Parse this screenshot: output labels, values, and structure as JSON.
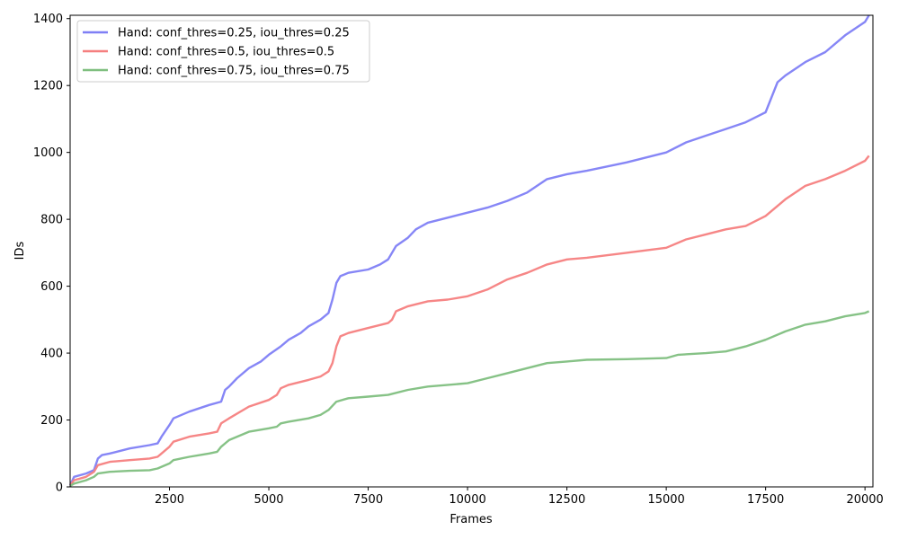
{
  "chart_data": {
    "type": "line",
    "title": "",
    "xlabel": "Frames",
    "ylabel": "IDs",
    "xlim": [
      0,
      20200
    ],
    "ylim": [
      0,
      1410
    ],
    "xticks": [
      2500,
      5000,
      7500,
      10000,
      12500,
      15000,
      17500,
      20000
    ],
    "xtick_labels": [
      "2500",
      "5000",
      "7500",
      "10000",
      "12500",
      "15000",
      "17500",
      "20000"
    ],
    "yticks": [
      0,
      200,
      400,
      600,
      800,
      1000,
      1200,
      1400
    ],
    "ytick_labels": [
      "0",
      "200",
      "400",
      "600",
      "800",
      "1000",
      "1200",
      "1400"
    ],
    "grid": false,
    "legend_position": "top-left",
    "series": [
      {
        "name": "Hand: conf_thres=0.25, iou_thres=0.25",
        "color": "#7f7ff5",
        "x": [
          0,
          100,
          400,
          600,
          700,
          800,
          1000,
          1500,
          2000,
          2200,
          2300,
          2500,
          2600,
          3000,
          3500,
          3800,
          3900,
          4000,
          4200,
          4500,
          4800,
          5000,
          5300,
          5500,
          5800,
          6000,
          6300,
          6500,
          6600,
          6700,
          6800,
          7000,
          7500,
          7800,
          8000,
          8200,
          8500,
          8700,
          9000,
          9500,
          10000,
          10500,
          11000,
          11500,
          12000,
          12500,
          13000,
          14000,
          15000,
          15500,
          16000,
          16500,
          17000,
          17500,
          17800,
          18000,
          18500,
          19000,
          19500,
          20000,
          20100
        ],
        "values": [
          5,
          30,
          40,
          50,
          85,
          95,
          100,
          115,
          125,
          130,
          150,
          185,
          205,
          225,
          245,
          255,
          290,
          300,
          325,
          355,
          375,
          395,
          420,
          440,
          460,
          480,
          500,
          520,
          560,
          610,
          630,
          640,
          650,
          665,
          680,
          720,
          745,
          770,
          790,
          805,
          820,
          835,
          855,
          880,
          920,
          935,
          945,
          970,
          1000,
          1030,
          1050,
          1070,
          1090,
          1120,
          1210,
          1230,
          1270,
          1300,
          1350,
          1390,
          1410
        ]
      },
      {
        "name": "Hand: conf_thres=0.5, iou_thres=0.5",
        "color": "#f57f7f",
        "x": [
          0,
          100,
          400,
          600,
          700,
          1000,
          1500,
          2000,
          2200,
          2300,
          2500,
          2600,
          3000,
          3500,
          3700,
          3800,
          4000,
          4500,
          5000,
          5200,
          5300,
          5500,
          6000,
          6300,
          6500,
          6600,
          6700,
          6800,
          7000,
          7500,
          8000,
          8100,
          8200,
          8500,
          9000,
          9500,
          10000,
          10500,
          11000,
          11500,
          12000,
          12500,
          13000,
          14000,
          15000,
          15500,
          16000,
          16500,
          17000,
          17500,
          18000,
          18500,
          19000,
          19500,
          20000,
          20100
        ],
        "values": [
          5,
          20,
          30,
          45,
          65,
          75,
          80,
          85,
          90,
          100,
          120,
          135,
          150,
          160,
          165,
          190,
          205,
          240,
          260,
          275,
          295,
          305,
          320,
          330,
          345,
          370,
          420,
          450,
          460,
          475,
          490,
          500,
          525,
          540,
          555,
          560,
          570,
          590,
          620,
          640,
          665,
          680,
          685,
          700,
          715,
          740,
          755,
          770,
          780,
          810,
          860,
          900,
          920,
          945,
          975,
          990
        ]
      },
      {
        "name": "Hand: conf_thres=0.75, iou_thres=0.75",
        "color": "#7fbf7f",
        "x": [
          0,
          100,
          400,
          600,
          700,
          1000,
          1500,
          2000,
          2200,
          2500,
          2600,
          3000,
          3500,
          3700,
          3800,
          4000,
          4500,
          5000,
          5200,
          5300,
          5500,
          6000,
          6300,
          6500,
          6700,
          7000,
          7500,
          8000,
          8500,
          9000,
          10000,
          10500,
          11000,
          11500,
          12000,
          12500,
          13000,
          14000,
          15000,
          15300,
          16000,
          16500,
          17000,
          17500,
          18000,
          18500,
          19000,
          19500,
          20000,
          20100
        ],
        "values": [
          3,
          10,
          20,
          30,
          40,
          45,
          48,
          50,
          55,
          70,
          80,
          90,
          100,
          105,
          120,
          140,
          165,
          175,
          180,
          190,
          195,
          205,
          215,
          230,
          255,
          265,
          270,
          275,
          290,
          300,
          310,
          325,
          340,
          355,
          370,
          375,
          380,
          382,
          385,
          395,
          400,
          405,
          420,
          440,
          465,
          485,
          495,
          510,
          520,
          525
        ]
      }
    ]
  }
}
